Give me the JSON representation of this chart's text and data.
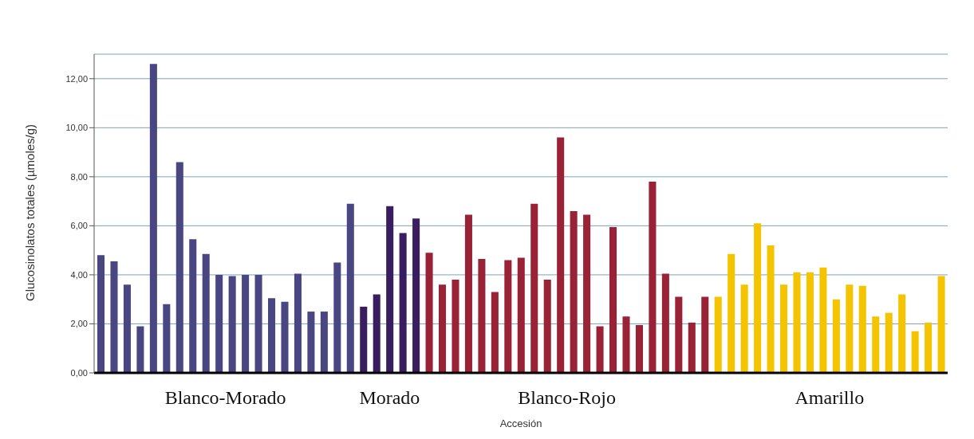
{
  "chart_data": {
    "type": "bar",
    "stacked": true,
    "xlabel": "Accesión",
    "ylabel": "Glucosinolatos totales (µmoles/g)",
    "categories": [
      null,
      null,
      null,
      null,
      null,
      null,
      null,
      null,
      null,
      null,
      null,
      null,
      null,
      null,
      null,
      null,
      null,
      null,
      null,
      null,
      null,
      null,
      null,
      null,
      null,
      null,
      null,
      null,
      null,
      null,
      null,
      null,
      null,
      null,
      null,
      null,
      null,
      null,
      null,
      null,
      null,
      null,
      null,
      null,
      null,
      null,
      null,
      null,
      null,
      null,
      null,
      null,
      null,
      null,
      null,
      null,
      null,
      null,
      null,
      null,
      null,
      null,
      null,
      null,
      null
    ],
    "series": [
      {
        "name": "Blanco-Morado",
        "color": "#4a4682",
        "values": [
          4.8,
          4.55,
          3.6,
          1.9,
          12.6,
          2.8,
          8.6,
          5.45,
          4.85,
          4.0,
          3.95,
          4.0,
          4.0,
          3.05,
          2.9,
          4.05,
          2.5,
          2.5,
          4.5,
          6.9,
          null,
          null,
          null,
          null,
          null,
          null,
          null,
          null,
          null,
          null,
          null,
          null,
          null,
          null,
          null,
          null,
          null,
          null,
          null,
          null,
          null,
          null,
          null,
          null,
          null,
          null,
          null,
          null,
          null,
          null,
          null,
          null,
          null,
          null,
          null,
          null,
          null,
          null,
          null,
          null,
          null,
          null,
          null,
          null,
          null
        ]
      },
      {
        "name": "Morado",
        "color": "#3a1d5e",
        "values": [
          null,
          null,
          null,
          null,
          null,
          null,
          null,
          null,
          null,
          null,
          null,
          null,
          null,
          null,
          null,
          null,
          null,
          null,
          null,
          null,
          2.7,
          3.2,
          6.8,
          5.7,
          6.3,
          null,
          null,
          null,
          null,
          null,
          null,
          null,
          null,
          null,
          null,
          null,
          null,
          null,
          null,
          null,
          null,
          null,
          null,
          null,
          null,
          null,
          null,
          null,
          null,
          null,
          null,
          null,
          null,
          null,
          null,
          null,
          null,
          null,
          null,
          null,
          null,
          null,
          null,
          null,
          null
        ]
      },
      {
        "name": "Blanco-Rojo",
        "color": "#9a2236",
        "values": [
          null,
          null,
          null,
          null,
          null,
          null,
          null,
          null,
          null,
          null,
          null,
          null,
          null,
          null,
          null,
          null,
          null,
          null,
          null,
          null,
          null,
          null,
          null,
          null,
          null,
          4.9,
          3.6,
          3.8,
          6.45,
          4.65,
          3.3,
          4.6,
          4.7,
          6.9,
          3.8,
          9.6,
          6.6,
          6.45,
          1.9,
          5.95,
          2.3,
          1.95,
          7.8,
          4.05,
          3.1,
          2.05,
          3.1,
          null,
          null,
          null,
          null,
          null,
          null,
          null,
          null,
          null,
          null,
          null,
          null,
          null,
          null,
          null,
          null,
          null,
          null
        ]
      },
      {
        "name": "Amarillo",
        "color": "#f5c400",
        "values": [
          null,
          null,
          null,
          null,
          null,
          null,
          null,
          null,
          null,
          null,
          null,
          null,
          null,
          null,
          null,
          null,
          null,
          null,
          null,
          null,
          null,
          null,
          null,
          null,
          null,
          null,
          null,
          null,
          null,
          null,
          null,
          null,
          null,
          null,
          null,
          null,
          null,
          null,
          null,
          null,
          null,
          null,
          null,
          null,
          null,
          null,
          null,
          3.1,
          4.85,
          3.6,
          6.1,
          5.2,
          3.6,
          4.1,
          4.1,
          4.3,
          3.0,
          3.6,
          3.55,
          2.3,
          2.45,
          3.2,
          1.7,
          2.05,
          3.95
        ]
      }
    ],
    "ylim": [
      0,
      13
    ],
    "yticks": [
      {
        "value": 0,
        "label": "0,00"
      },
      {
        "value": 2,
        "label": "2,00"
      },
      {
        "value": 4,
        "label": "4,00"
      },
      {
        "value": 6,
        "label": "6,00"
      },
      {
        "value": 8,
        "label": "8,00"
      },
      {
        "value": 10,
        "label": "10,00"
      },
      {
        "value": 12,
        "label": "12,00"
      }
    ],
    "grid": "y"
  }
}
